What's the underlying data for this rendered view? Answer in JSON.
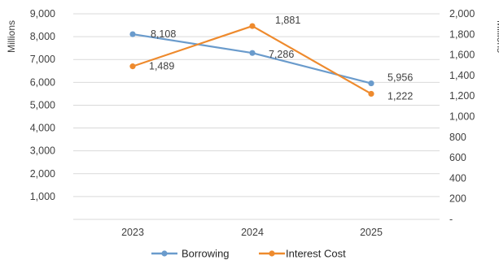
{
  "chart_data": {
    "type": "line",
    "categories": [
      "2023",
      "2024",
      "2025"
    ],
    "series": [
      {
        "name": "Borrowing",
        "axis": "left",
        "color": "#6a9bcc",
        "values": [
          8108,
          7286,
          5956
        ],
        "labels": [
          "8,108",
          "7,286",
          "5,956"
        ]
      },
      {
        "name": "Interest Cost",
        "axis": "right",
        "color": "#ee8a2d",
        "values": [
          1489,
          1881,
          1222
        ],
        "labels": [
          "1,489",
          "1,881",
          "1,222"
        ]
      }
    ],
    "y_left": {
      "label": "Millions",
      "ylim": [
        0,
        9000
      ],
      "ticks": [
        0,
        1000,
        2000,
        3000,
        4000,
        5000,
        6000,
        7000,
        8000,
        9000
      ],
      "tick_labels": [
        "",
        "1,000",
        "2,000",
        "3,000",
        "4,000",
        "5,000",
        "6,000",
        "7,000",
        "8,000",
        "9,000"
      ]
    },
    "y_right": {
      "label": "Millions",
      "ylim": [
        0,
        2000
      ],
      "ticks": [
        0,
        200,
        400,
        600,
        800,
        1000,
        1200,
        1400,
        1600,
        1800,
        2000
      ],
      "tick_labels": [
        "-",
        "200",
        "400",
        "600",
        "800",
        "1,000",
        "1,200",
        "1,400",
        "1,600",
        "1,800",
        "2,000"
      ]
    },
    "grid": true,
    "grid_color": "#d9d9d9",
    "legend": "bottom"
  }
}
